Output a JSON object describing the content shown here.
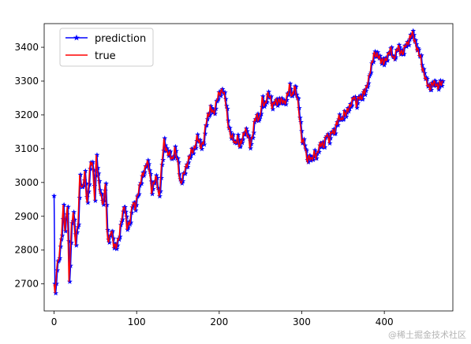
{
  "chart_data": {
    "type": "line",
    "title": "",
    "xlabel": "",
    "ylabel": "",
    "xlim": [
      -12,
      483
    ],
    "ylim": [
      2620,
      3470
    ],
    "xticks": [
      0,
      100,
      200,
      300,
      400
    ],
    "yticks": [
      2700,
      2800,
      2900,
      3000,
      3100,
      3200,
      3300,
      3400
    ],
    "grid": false,
    "legend_position": "top-left",
    "anchors": [
      [
        0,
        2700
      ],
      [
        1,
        2660
      ],
      [
        3,
        2740
      ],
      [
        6,
        2790
      ],
      [
        9,
        2850
      ],
      [
        11,
        2920
      ],
      [
        13,
        2860
      ],
      [
        16,
        2940
      ],
      [
        18,
        2700
      ],
      [
        21,
        2870
      ],
      [
        23,
        2920
      ],
      [
        26,
        2820
      ],
      [
        29,
        2880
      ],
      [
        31,
        3020
      ],
      [
        34,
        2980
      ],
      [
        37,
        3020
      ],
      [
        40,
        2940
      ],
      [
        43,
        3040
      ],
      [
        46,
        3060
      ],
      [
        49,
        2960
      ],
      [
        51,
        3080
      ],
      [
        54,
        2990
      ],
      [
        57,
        2960
      ],
      [
        60,
        2940
      ],
      [
        62,
        3000
      ],
      [
        64,
        2850
      ],
      [
        66,
        2830
      ],
      [
        69,
        2860
      ],
      [
        72,
        2810
      ],
      [
        76,
        2820
      ],
      [
        79,
        2840
      ],
      [
        82,
        2900
      ],
      [
        85,
        2940
      ],
      [
        88,
        2860
      ],
      [
        91,
        2880
      ],
      [
        95,
        2940
      ],
      [
        98,
        2920
      ],
      [
        101,
        2970
      ],
      [
        105,
        3000
      ],
      [
        108,
        3030
      ],
      [
        112,
        3060
      ],
      [
        115,
        3040
      ],
      [
        118,
        2980
      ],
      [
        121,
        3000
      ],
      [
        124,
        3010
      ],
      [
        127,
        2960
      ],
      [
        130,
        3040
      ],
      [
        133,
        3120
      ],
      [
        136,
        3100
      ],
      [
        139,
        3080
      ],
      [
        143,
        3070
      ],
      [
        146,
        3100
      ],
      [
        150,
        3050
      ],
      [
        153,
        3000
      ],
      [
        157,
        3020
      ],
      [
        161,
        3060
      ],
      [
        165,
        3080
      ],
      [
        169,
        3100
      ],
      [
        173,
        3130
      ],
      [
        177,
        3110
      ],
      [
        181,
        3120
      ],
      [
        185,
        3190
      ],
      [
        189,
        3220
      ],
      [
        193,
        3200
      ],
      [
        197,
        3250
      ],
      [
        201,
        3260
      ],
      [
        204,
        3280
      ],
      [
        207,
        3250
      ],
      [
        210,
        3180
      ],
      [
        213,
        3150
      ],
      [
        216,
        3130
      ],
      [
        219,
        3110
      ],
      [
        222,
        3140
      ],
      [
        225,
        3100
      ],
      [
        228,
        3130
      ],
      [
        231,
        3160
      ],
      [
        234,
        3140
      ],
      [
        237,
        3110
      ],
      [
        240,
        3140
      ],
      [
        243,
        3180
      ],
      [
        246,
        3200
      ],
      [
        249,
        3190
      ],
      [
        252,
        3240
      ],
      [
        255,
        3230
      ],
      [
        258,
        3260
      ],
      [
        261,
        3250
      ],
      [
        264,
        3230
      ],
      [
        267,
        3240
      ],
      [
        270,
        3230
      ],
      [
        273,
        3250
      ],
      [
        276,
        3240
      ],
      [
        279,
        3230
      ],
      [
        282,
        3260
      ],
      [
        285,
        3280
      ],
      [
        288,
        3250
      ],
      [
        291,
        3290
      ],
      [
        294,
        3250
      ],
      [
        297,
        3200
      ],
      [
        300,
        3130
      ],
      [
        303,
        3110
      ],
      [
        306,
        3070
      ],
      [
        309,
        3080
      ],
      [
        312,
        3060
      ],
      [
        315,
        3090
      ],
      [
        318,
        3080
      ],
      [
        321,
        3100
      ],
      [
        324,
        3120
      ],
      [
        327,
        3110
      ],
      [
        330,
        3140
      ],
      [
        333,
        3130
      ],
      [
        336,
        3150
      ],
      [
        339,
        3140
      ],
      [
        342,
        3180
      ],
      [
        345,
        3190
      ],
      [
        348,
        3180
      ],
      [
        351,
        3210
      ],
      [
        354,
        3200
      ],
      [
        357,
        3220
      ],
      [
        360,
        3240
      ],
      [
        363,
        3250
      ],
      [
        366,
        3230
      ],
      [
        369,
        3260
      ],
      [
        372,
        3240
      ],
      [
        375,
        3270
      ],
      [
        378,
        3280
      ],
      [
        381,
        3300
      ],
      [
        384,
        3350
      ],
      [
        387,
        3380
      ],
      [
        390,
        3370
      ],
      [
        393,
        3380
      ],
      [
        396,
        3360
      ],
      [
        399,
        3350
      ],
      [
        402,
        3370
      ],
      [
        405,
        3380
      ],
      [
        408,
        3390
      ],
      [
        411,
        3370
      ],
      [
        414,
        3380
      ],
      [
        417,
        3400
      ],
      [
        420,
        3390
      ],
      [
        423,
        3380
      ],
      [
        426,
        3410
      ],
      [
        429,
        3420
      ],
      [
        432,
        3430
      ],
      [
        435,
        3440
      ],
      [
        438,
        3410
      ],
      [
        441,
        3380
      ],
      [
        444,
        3370
      ],
      [
        447,
        3330
      ],
      [
        450,
        3300
      ],
      [
        453,
        3290
      ],
      [
        456,
        3280
      ],
      [
        459,
        3290
      ],
      [
        462,
        3300
      ],
      [
        465,
        3280
      ],
      [
        468,
        3290
      ],
      [
        471,
        3300
      ]
    ],
    "series": [
      {
        "name": "prediction",
        "color": "#0000ff",
        "marker": "star",
        "offset": 1,
        "first_value": 2960
      },
      {
        "name": "true",
        "color": "#ff0000",
        "marker": "none",
        "offset": 0
      }
    ]
  }
}
